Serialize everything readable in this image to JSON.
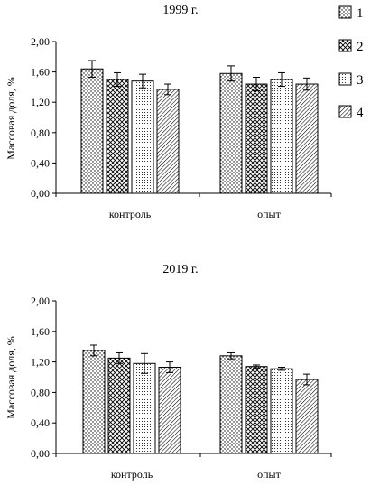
{
  "chart_data": [
    {
      "type": "bar",
      "title": "1999 г.",
      "ylabel": "Массовая доля, %",
      "categories": [
        "контроль",
        "опыт"
      ],
      "ylim": [
        0,
        2
      ],
      "yticks": [
        "0,00",
        "0,40",
        "0,80",
        "1,20",
        "1,60",
        "2,00"
      ],
      "series": [
        {
          "name": "1",
          "values": [
            1.64,
            1.58
          ],
          "errors": [
            0.11,
            0.1
          ]
        },
        {
          "name": "2",
          "values": [
            1.5,
            1.44
          ],
          "errors": [
            0.09,
            0.09
          ]
        },
        {
          "name": "3",
          "values": [
            1.48,
            1.5
          ],
          "errors": [
            0.09,
            0.09
          ]
        },
        {
          "name": "4",
          "values": [
            1.37,
            1.44
          ],
          "errors": [
            0.07,
            0.08
          ]
        }
      ],
      "legend_position": "right"
    },
    {
      "type": "bar",
      "title": "2019 г.",
      "ylabel": "Массовая доля, %",
      "categories": [
        "контроль",
        "опыт"
      ],
      "ylim": [
        0,
        2
      ],
      "yticks": [
        "0,00",
        "0,40",
        "0,80",
        "1,20",
        "1,60",
        "2,00"
      ],
      "series": [
        {
          "name": "1",
          "values": [
            1.35,
            1.28
          ],
          "errors": [
            0.07,
            0.04
          ]
        },
        {
          "name": "2",
          "values": [
            1.25,
            1.14
          ],
          "errors": [
            0.07,
            0.02
          ]
        },
        {
          "name": "3",
          "values": [
            1.18,
            1.11
          ],
          "errors": [
            0.13,
            0.02
          ]
        },
        {
          "name": "4",
          "values": [
            1.13,
            0.97
          ],
          "errors": [
            0.07,
            0.07
          ]
        }
      ]
    }
  ],
  "legend": {
    "items": [
      {
        "label": "1",
        "pattern": "dots"
      },
      {
        "label": "2",
        "pattern": "crosshatch"
      },
      {
        "label": "3",
        "pattern": "fine-dots"
      },
      {
        "label": "4",
        "pattern": "diagonal"
      }
    ]
  }
}
